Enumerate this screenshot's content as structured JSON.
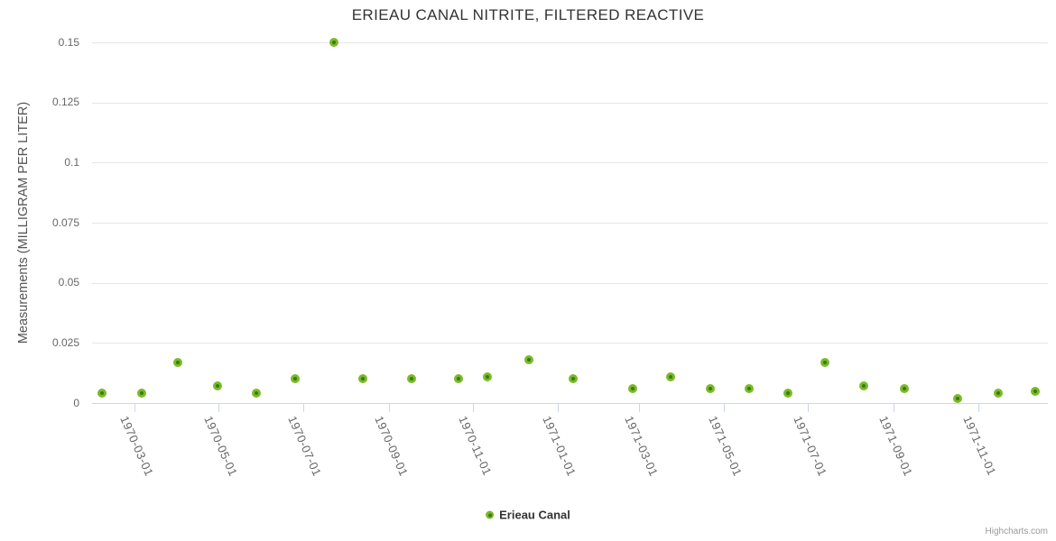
{
  "chart_data": {
    "type": "scatter",
    "title": "ERIEAU CANAL NITRITE, FILTERED REACTIVE",
    "xlabel": "",
    "ylabel": "Measurements (MILLIGRAM PER LITER)",
    "ylim": [
      0,
      0.15
    ],
    "yticks": [
      0,
      0.025,
      0.05,
      0.075,
      0.1,
      0.125,
      0.15
    ],
    "xlim": [
      "1970-01-29",
      "1971-12-21"
    ],
    "xticks": [
      "1970-03-01",
      "1970-05-01",
      "1970-07-01",
      "1970-09-01",
      "1970-11-01",
      "1971-01-01",
      "1971-03-01",
      "1971-05-01",
      "1971-07-01",
      "1971-09-01",
      "1971-11-01"
    ],
    "grid": "horizontal",
    "legend_position": "bottom-center",
    "series": [
      {
        "name": "Erieau Canal",
        "points": [
          {
            "date": "1970-02-05",
            "value": 0.004
          },
          {
            "date": "1970-03-06",
            "value": 0.004
          },
          {
            "date": "1970-04-01",
            "value": 0.017
          },
          {
            "date": "1970-04-30",
            "value": 0.007
          },
          {
            "date": "1970-05-28",
            "value": 0.004
          },
          {
            "date": "1970-06-25",
            "value": 0.01
          },
          {
            "date": "1970-07-23",
            "value": 0.15
          },
          {
            "date": "1970-08-13",
            "value": 0.01
          },
          {
            "date": "1970-09-17",
            "value": 0.01
          },
          {
            "date": "1970-10-21",
            "value": 0.01
          },
          {
            "date": "1970-11-11",
            "value": 0.011
          },
          {
            "date": "1970-12-11",
            "value": 0.018
          },
          {
            "date": "1971-01-12",
            "value": 0.01
          },
          {
            "date": "1971-02-24",
            "value": 0.006
          },
          {
            "date": "1971-03-23",
            "value": 0.011
          },
          {
            "date": "1971-04-21",
            "value": 0.006
          },
          {
            "date": "1971-05-19",
            "value": 0.006
          },
          {
            "date": "1971-06-16",
            "value": 0.004
          },
          {
            "date": "1971-07-13",
            "value": 0.017
          },
          {
            "date": "1971-08-10",
            "value": 0.007
          },
          {
            "date": "1971-09-08",
            "value": 0.006
          },
          {
            "date": "1971-10-17",
            "value": 0.002
          },
          {
            "date": "1971-11-15",
            "value": 0.004
          },
          {
            "date": "1971-12-12",
            "value": 0.005
          }
        ]
      }
    ]
  },
  "colors": {
    "marker_outer": "#7cb928",
    "marker_inner": "#357c16",
    "gridline": "#e6e6e6",
    "axis": "#ccd6eb",
    "title_text": "#333333",
    "axis_labels": "#666666",
    "legend_text": "#333333",
    "credits_text": "#999999"
  },
  "credits": {
    "label": "Highcharts.com"
  }
}
